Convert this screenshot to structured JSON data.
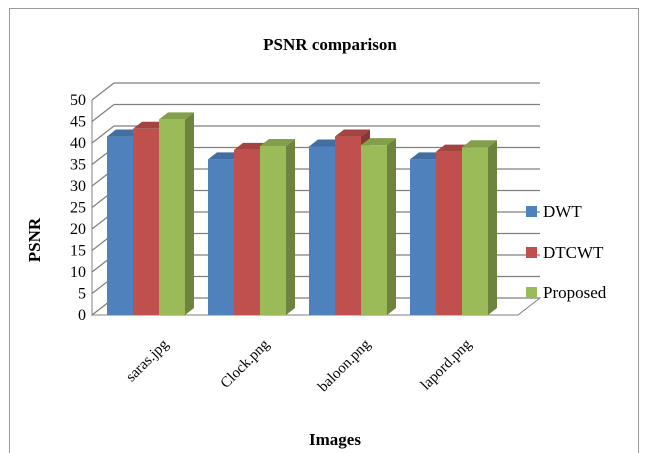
{
  "chart_data": {
    "type": "bar",
    "title": "PSNR comparison",
    "xlabel": "Images",
    "ylabel": "PSNR",
    "categories": [
      "saras.jpg",
      "Clock.png",
      "baloon.png",
      "lapord.png"
    ],
    "series": [
      {
        "name": "DWT",
        "values": [
          41.5,
          36.2,
          39.2,
          36.2
        ],
        "color": "#4f81bd"
      },
      {
        "name": "DTCWT",
        "values": [
          43.3,
          38.4,
          41.5,
          38.0
        ],
        "color": "#c0504d"
      },
      {
        "name": "Proposed",
        "values": [
          45.5,
          39.3,
          39.5,
          39.0
        ],
        "color": "#9bbb59"
      }
    ],
    "ylim": [
      0,
      50
    ],
    "yticks": [
      0,
      5,
      10,
      15,
      20,
      25,
      30,
      35,
      40,
      45,
      50
    ],
    "grid": true,
    "legend_position": "right",
    "style": "3d-clustered-column"
  }
}
